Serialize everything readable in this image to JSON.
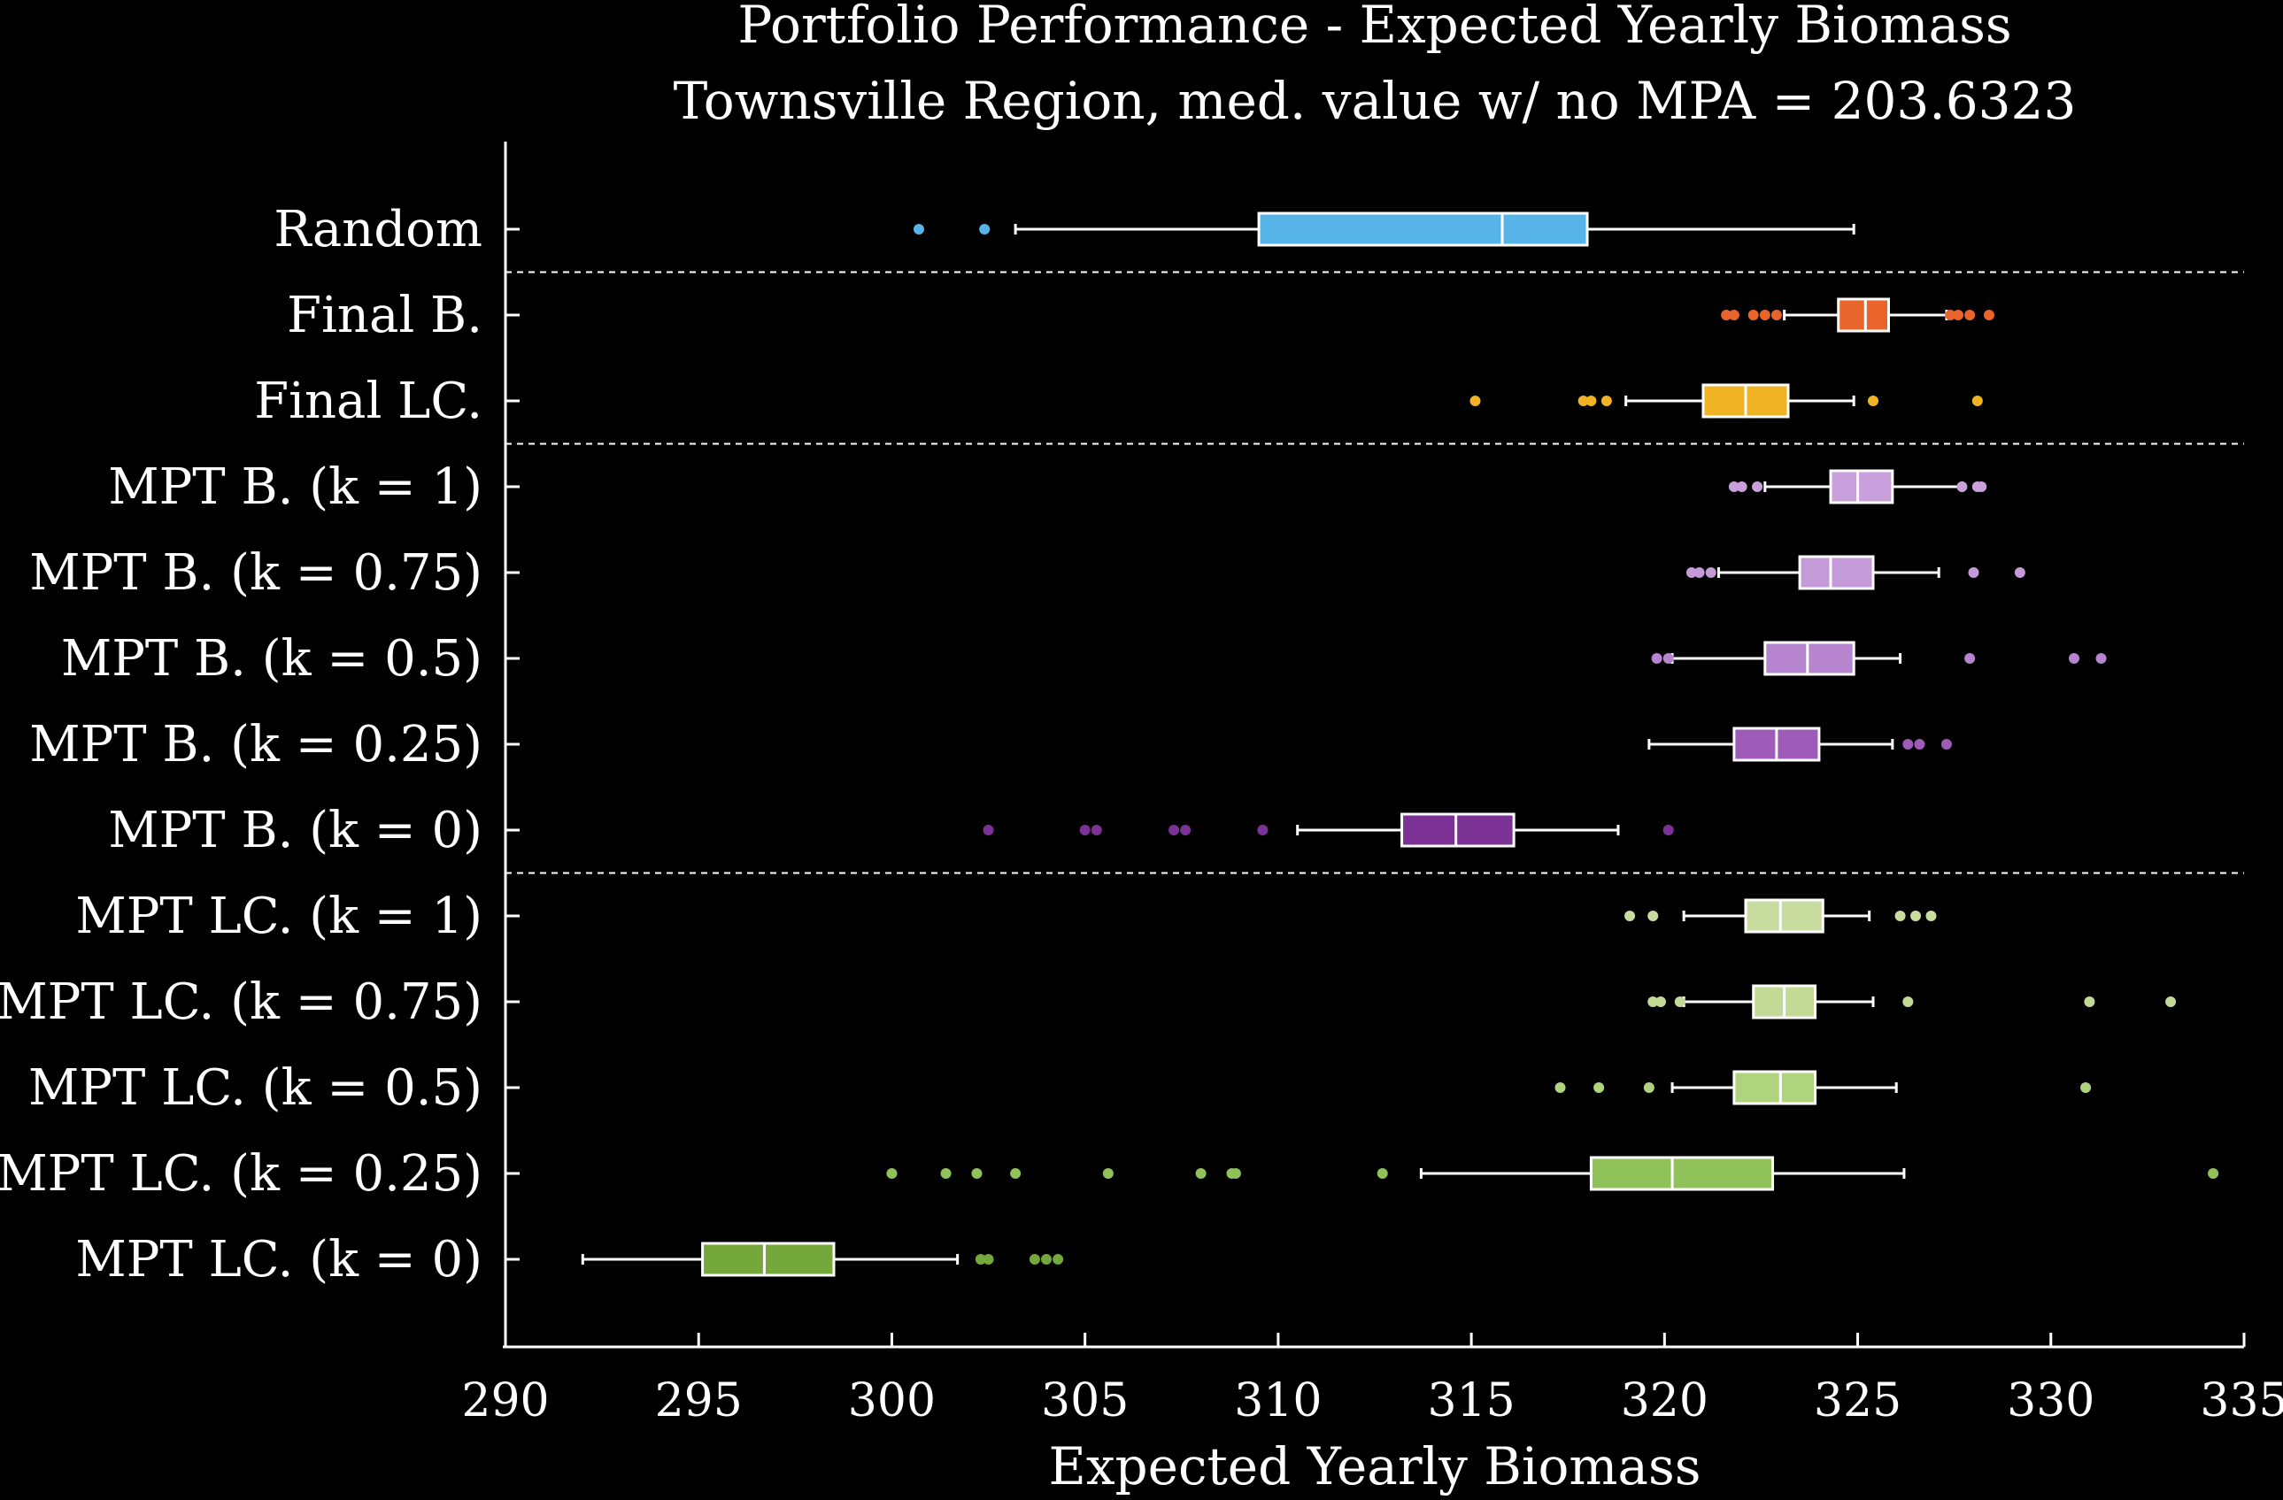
{
  "chart_data": {
    "type": "boxplot",
    "title": "Portfolio Performance - Expected Yearly Biomass",
    "subtitle": "Townsville Region, med. value w/ no MPA = 203.6323",
    "xlabel": "Expected Yearly Biomass",
    "ylabel": "",
    "xlim": [
      290,
      335
    ],
    "xticks": [
      "290",
      "295",
      "300",
      "305",
      "310",
      "315",
      "320",
      "325",
      "330",
      "335"
    ],
    "grid": false,
    "group_separators_after": [
      "Random",
      "Final LC.",
      "MPT B. (k = 0)"
    ],
    "categories": [
      "Random",
      "Final B.",
      "Final LC.",
      "MPT B. (k = 1)",
      "MPT B. (k = 0.75)",
      "MPT B. (k = 0.5)",
      "MPT B. (k = 0.25)",
      "MPT B. (k = 0)",
      "MPT LC. (k = 1)",
      "MPT LC. (k = 0.75)",
      "MPT LC. (k = 0.5)",
      "MPT LC. (k = 0.25)",
      "MPT LC. (k = 0)"
    ],
    "series": [
      {
        "category": "Random",
        "color": "#56B4E9",
        "whisker_low": 303.2,
        "q1": 309.5,
        "median": 315.8,
        "q3": 318.0,
        "whisker_high": 324.9,
        "outliers": [
          300.7,
          302.4
        ]
      },
      {
        "category": "Final B.",
        "color": "#E8642A",
        "whisker_low": 323.1,
        "q1": 324.5,
        "median": 325.2,
        "q3": 325.8,
        "whisker_high": 327.3,
        "outliers": [
          321.6,
          321.8,
          322.3,
          322.6,
          322.9,
          327.4,
          327.6,
          327.9,
          328.4
        ]
      },
      {
        "category": "Final LC.",
        "color": "#F0B323",
        "whisker_low": 319.0,
        "q1": 321.0,
        "median": 322.1,
        "q3": 323.2,
        "whisker_high": 324.9,
        "outliers": [
          315.1,
          317.9,
          318.1,
          318.5,
          325.4,
          328.1
        ]
      },
      {
        "category": "MPT B. (k = 1)",
        "color": "#C9A0DC",
        "whisker_low": 322.6,
        "q1": 324.3,
        "median": 325.0,
        "q3": 325.9,
        "whisker_high": 327.7,
        "outliers": [
          321.8,
          322.0,
          322.4,
          327.7,
          328.1,
          328.2
        ]
      },
      {
        "category": "MPT B. (k = 0.75)",
        "color": "#C49BD8",
        "whisker_low": 321.4,
        "q1": 323.5,
        "median": 324.3,
        "q3": 325.4,
        "whisker_high": 327.1,
        "outliers": [
          320.7,
          320.9,
          321.2,
          328.0,
          329.2
        ]
      },
      {
        "category": "MPT B. (k = 0.5)",
        "color": "#B785CF",
        "whisker_low": 320.2,
        "q1": 322.6,
        "median": 323.7,
        "q3": 324.9,
        "whisker_high": 326.1,
        "outliers": [
          319.8,
          320.1,
          327.9,
          330.6,
          331.3
        ]
      },
      {
        "category": "MPT B. (k = 0.25)",
        "color": "#9E5CB8",
        "whisker_low": 319.6,
        "q1": 321.8,
        "median": 322.9,
        "q3": 324.0,
        "whisker_high": 325.9,
        "outliers": [
          326.3,
          326.6,
          327.3
        ]
      },
      {
        "category": "MPT B. (k = 0)",
        "color": "#7B3294",
        "whisker_low": 310.5,
        "q1": 313.2,
        "median": 314.6,
        "q3": 316.1,
        "whisker_high": 318.8,
        "outliers": [
          302.5,
          305.0,
          305.3,
          307.3,
          307.6,
          309.6,
          320.1
        ]
      },
      {
        "category": "MPT LC. (k = 1)",
        "color": "#C8DCA0",
        "whisker_low": 320.5,
        "q1": 322.1,
        "median": 323.0,
        "q3": 324.1,
        "whisker_high": 325.3,
        "outliers": [
          319.1,
          319.7,
          326.1,
          326.5,
          326.9
        ]
      },
      {
        "category": "MPT LC. (k = 0.75)",
        "color": "#C2DA96",
        "whisker_low": 320.5,
        "q1": 322.3,
        "median": 323.1,
        "q3": 323.9,
        "whisker_high": 325.4,
        "outliers": [
          319.7,
          319.9,
          320.4,
          326.3,
          331.0,
          333.1
        ]
      },
      {
        "category": "MPT LC. (k = 0.5)",
        "color": "#B0D47E",
        "whisker_low": 320.2,
        "q1": 321.8,
        "median": 323.0,
        "q3": 323.9,
        "whisker_high": 326.0,
        "outliers": [
          317.3,
          318.3,
          319.6,
          330.9
        ]
      },
      {
        "category": "MPT LC. (k = 0.25)",
        "color": "#8FC258",
        "whisker_low": 313.7,
        "q1": 318.1,
        "median": 320.2,
        "q3": 322.8,
        "whisker_high": 326.2,
        "outliers": [
          300.0,
          301.4,
          302.2,
          303.2,
          305.6,
          308.0,
          308.8,
          308.9,
          312.7,
          334.2
        ]
      },
      {
        "category": "MPT LC. (k = 0)",
        "color": "#74A83A",
        "whisker_low": 292.0,
        "q1": 295.1,
        "median": 296.7,
        "q3": 298.5,
        "whisker_high": 301.7,
        "outliers": [
          302.3,
          302.5,
          303.7,
          304.0,
          304.3
        ]
      }
    ]
  }
}
